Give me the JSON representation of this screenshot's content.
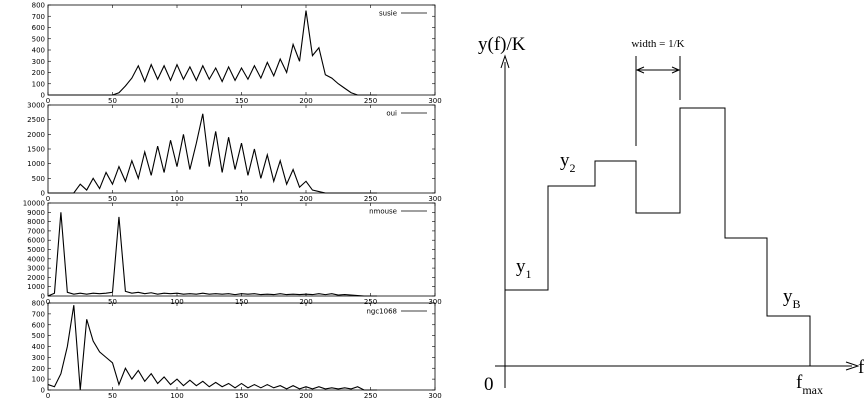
{
  "chart_data": [
    {
      "type": "line",
      "legend": "upper right",
      "xlim": [
        0,
        300
      ],
      "xticks": [
        0,
        50,
        100,
        150,
        200,
        250,
        300
      ],
      "ylim": [
        0,
        800
      ],
      "yticks": [
        0,
        100,
        200,
        300,
        400,
        500,
        600,
        700,
        800
      ],
      "x": [
        0,
        5,
        10,
        15,
        20,
        25,
        30,
        35,
        40,
        45,
        50,
        55,
        60,
        65,
        70,
        75,
        80,
        85,
        90,
        95,
        100,
        105,
        110,
        115,
        120,
        125,
        130,
        135,
        140,
        145,
        150,
        155,
        160,
        165,
        170,
        175,
        180,
        185,
        190,
        195,
        200,
        205,
        210,
        215,
        220,
        225,
        230,
        235,
        240,
        245,
        250,
        255
      ],
      "series": [
        {
          "name": "susie",
          "color": "#000000",
          "values": [
            0,
            0,
            0,
            0,
            0,
            0,
            0,
            0,
            0,
            0,
            0,
            20,
            80,
            150,
            260,
            120,
            270,
            140,
            260,
            130,
            270,
            140,
            250,
            130,
            260,
            140,
            240,
            120,
            250,
            130,
            240,
            140,
            260,
            150,
            290,
            170,
            320,
            200,
            450,
            300,
            750,
            350,
            420,
            180,
            150,
            100,
            60,
            20,
            0,
            0,
            0,
            0
          ]
        }
      ]
    },
    {
      "type": "line",
      "legend": "upper right",
      "xlim": [
        0,
        300
      ],
      "xticks": [
        0,
        50,
        100,
        150,
        200,
        250,
        300
      ],
      "ylim": [
        0,
        3000
      ],
      "yticks": [
        0,
        500,
        1000,
        1500,
        2000,
        2500,
        3000
      ],
      "x": [
        0,
        5,
        10,
        15,
        20,
        25,
        30,
        35,
        40,
        45,
        50,
        55,
        60,
        65,
        70,
        75,
        80,
        85,
        90,
        95,
        100,
        105,
        110,
        115,
        120,
        125,
        130,
        135,
        140,
        145,
        150,
        155,
        160,
        165,
        170,
        175,
        180,
        185,
        190,
        195,
        200,
        205,
        210,
        215,
        220,
        225,
        230,
        235,
        240,
        245,
        250,
        255
      ],
      "series": [
        {
          "name": "oui",
          "color": "#000000",
          "values": [
            0,
            0,
            0,
            0,
            0,
            300,
            100,
            500,
            150,
            700,
            300,
            900,
            400,
            1100,
            500,
            1400,
            600,
            1600,
            700,
            1800,
            900,
            2000,
            800,
            1700,
            2700,
            900,
            2100,
            700,
            1900,
            800,
            1700,
            600,
            1500,
            500,
            1300,
            400,
            1100,
            300,
            800,
            200,
            400,
            100,
            50,
            0,
            0,
            0,
            0,
            0,
            0,
            0,
            0,
            0
          ]
        }
      ]
    },
    {
      "type": "line",
      "legend": "upper right",
      "xlim": [
        0,
        300
      ],
      "xticks": [
        0,
        50,
        100,
        150,
        200,
        250,
        300
      ],
      "ylim": [
        0,
        10000
      ],
      "yticks": [
        0,
        1000,
        2000,
        3000,
        4000,
        5000,
        6000,
        7000,
        8000,
        9000,
        10000
      ],
      "x": [
        0,
        5,
        10,
        15,
        20,
        25,
        30,
        35,
        40,
        45,
        50,
        55,
        60,
        65,
        70,
        75,
        80,
        85,
        90,
        95,
        100,
        105,
        110,
        115,
        120,
        125,
        130,
        135,
        140,
        145,
        150,
        155,
        160,
        165,
        170,
        175,
        180,
        185,
        190,
        195,
        200,
        205,
        210,
        215,
        220,
        225,
        230,
        235,
        240,
        245,
        250,
        255
      ],
      "series": [
        {
          "name": "nmouse",
          "color": "#000000",
          "values": [
            0,
            300,
            9000,
            400,
            200,
            300,
            200,
            300,
            250,
            300,
            400,
            8500,
            500,
            300,
            400,
            250,
            350,
            200,
            300,
            250,
            300,
            200,
            250,
            200,
            300,
            200,
            250,
            200,
            250,
            150,
            250,
            200,
            250,
            150,
            200,
            150,
            250,
            150,
            200,
            150,
            200,
            150,
            250,
            150,
            250,
            100,
            150,
            100,
            50,
            0,
            0,
            0
          ]
        }
      ]
    },
    {
      "type": "line",
      "legend": "upper right",
      "xlim": [
        0,
        300
      ],
      "xticks": [
        0,
        50,
        100,
        150,
        200,
        250,
        300
      ],
      "ylim": [
        0,
        800
      ],
      "yticks": [
        0,
        100,
        200,
        300,
        400,
        500,
        600,
        700,
        800
      ],
      "x": [
        0,
        5,
        10,
        15,
        20,
        25,
        30,
        35,
        40,
        45,
        50,
        55,
        60,
        65,
        70,
        75,
        80,
        85,
        90,
        95,
        100,
        105,
        110,
        115,
        120,
        125,
        130,
        135,
        140,
        145,
        150,
        155,
        160,
        165,
        170,
        175,
        180,
        185,
        190,
        195,
        200,
        205,
        210,
        215,
        220,
        225,
        230,
        235,
        240,
        245,
        250,
        255
      ],
      "series": [
        {
          "name": "ngc1068",
          "color": "#000000",
          "values": [
            50,
            30,
            150,
            400,
            780,
            0,
            650,
            450,
            350,
            300,
            250,
            50,
            200,
            100,
            180,
            80,
            150,
            60,
            120,
            50,
            100,
            40,
            90,
            40,
            80,
            30,
            70,
            30,
            60,
            20,
            60,
            20,
            50,
            20,
            50,
            20,
            40,
            10,
            40,
            10,
            30,
            10,
            30,
            10,
            20,
            10,
            20,
            10,
            30,
            0,
            0,
            0
          ]
        }
      ]
    }
  ],
  "diagram": {
    "y_axis_label": "y(f)/K",
    "origin": "0",
    "x_axis_label": "f",
    "fmax": {
      "base": "f",
      "sub": "max"
    },
    "levels": [
      {
        "base": "y",
        "sub": "1"
      },
      {
        "base": "y",
        "sub": "2"
      },
      {
        "base": "y",
        "sub": "B"
      }
    ],
    "width_label": "width = 1/K"
  }
}
